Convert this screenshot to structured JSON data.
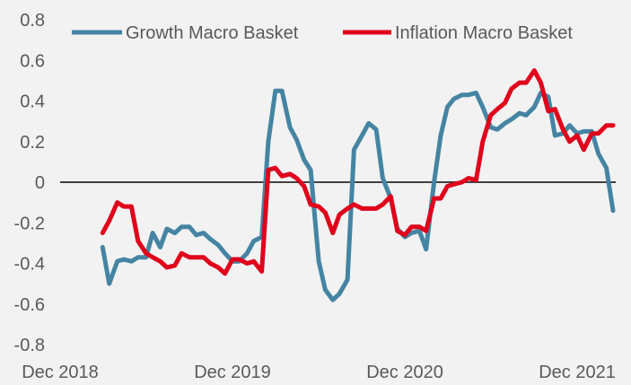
{
  "chart_data": {
    "type": "line",
    "title": "",
    "xlabel": "",
    "ylabel": "",
    "ylim": [
      -0.8,
      0.8
    ],
    "yticks": [
      "0.8",
      "0.6",
      "0.4",
      "0.2",
      "0",
      "-0.2",
      "-0.4",
      "-0.6",
      "-0.8"
    ],
    "xlim": [
      "2018-12-01",
      "2022-02-15"
    ],
    "xticks": [
      {
        "label": "Dec 2018",
        "date": "2018-12-01"
      },
      {
        "label": "Dec 2019",
        "date": "2019-12-01"
      },
      {
        "label": "Dec 2020",
        "date": "2020-12-01"
      },
      {
        "label": "Dec 2021",
        "date": "2021-12-01"
      }
    ],
    "grid": false,
    "zero_line": true,
    "legend_position": "top",
    "x": [
      "2019-03-01",
      "2019-03-15",
      "2019-04-01",
      "2019-04-15",
      "2019-05-01",
      "2019-05-15",
      "2019-06-01",
      "2019-06-15",
      "2019-07-01",
      "2019-07-15",
      "2019-08-01",
      "2019-08-15",
      "2019-09-01",
      "2019-09-15",
      "2019-10-01",
      "2019-10-15",
      "2019-11-01",
      "2019-11-15",
      "2019-12-01",
      "2019-12-15",
      "2020-01-01",
      "2020-01-15",
      "2020-02-01",
      "2020-02-15",
      "2020-03-01",
      "2020-03-15",
      "2020-04-01",
      "2020-04-15",
      "2020-05-01",
      "2020-05-15",
      "2020-06-01",
      "2020-06-15",
      "2020-07-01",
      "2020-07-15",
      "2020-08-01",
      "2020-08-15",
      "2020-09-01",
      "2020-09-15",
      "2020-10-01",
      "2020-10-15",
      "2020-11-01",
      "2020-11-15",
      "2020-12-01",
      "2020-12-15",
      "2021-01-01",
      "2021-01-15",
      "2021-02-01",
      "2021-02-15",
      "2021-03-01",
      "2021-03-15",
      "2021-04-01",
      "2021-04-15",
      "2021-05-01",
      "2021-05-15",
      "2021-06-01",
      "2021-06-15",
      "2021-07-01",
      "2021-07-15",
      "2021-08-01",
      "2021-08-15",
      "2021-09-01",
      "2021-09-15",
      "2021-10-01",
      "2021-10-15",
      "2021-11-01",
      "2021-11-15",
      "2021-12-01",
      "2021-12-15",
      "2022-01-01",
      "2022-01-15",
      "2022-02-01",
      "2022-02-15"
    ],
    "series": [
      {
        "name": "Growth Macro Basket",
        "color": "#4584a3",
        "values": [
          -0.32,
          -0.5,
          -0.39,
          -0.38,
          -0.39,
          -0.37,
          -0.37,
          -0.25,
          -0.32,
          -0.23,
          -0.25,
          -0.22,
          -0.22,
          -0.26,
          -0.25,
          -0.28,
          -0.31,
          -0.35,
          -0.39,
          -0.39,
          -0.35,
          -0.29,
          -0.27,
          0.2,
          0.45,
          0.45,
          0.27,
          0.21,
          0.11,
          0.06,
          -0.39,
          -0.53,
          -0.58,
          -0.55,
          -0.48,
          0.16,
          0.23,
          0.29,
          0.26,
          0.02,
          -0.08,
          -0.23,
          -0.27,
          -0.25,
          -0.24,
          -0.33,
          0.0,
          0.23,
          0.37,
          0.41,
          0.43,
          0.43,
          0.44,
          0.37,
          0.27,
          0.26,
          0.29,
          0.31,
          0.34,
          0.33,
          0.37,
          0.44,
          0.42,
          0.23,
          0.24,
          0.28,
          0.24,
          0.25,
          0.25,
          0.14,
          0.07,
          -0.14
        ]
      },
      {
        "name": "Inflation Macro Basket",
        "color": "#e0001b",
        "values": [
          -0.25,
          -0.19,
          -0.1,
          -0.12,
          -0.12,
          -0.29,
          -0.35,
          -0.37,
          -0.39,
          -0.42,
          -0.41,
          -0.35,
          -0.37,
          -0.37,
          -0.37,
          -0.4,
          -0.42,
          -0.45,
          -0.38,
          -0.38,
          -0.4,
          -0.39,
          -0.44,
          0.06,
          0.07,
          0.03,
          0.04,
          0.02,
          -0.02,
          -0.11,
          -0.12,
          -0.15,
          -0.25,
          -0.16,
          -0.13,
          -0.11,
          -0.13,
          -0.13,
          -0.13,
          -0.11,
          -0.07,
          -0.24,
          -0.26,
          -0.22,
          -0.22,
          -0.24,
          -0.08,
          -0.08,
          -0.02,
          -0.01,
          0.0,
          0.02,
          0.01,
          0.2,
          0.33,
          0.36,
          0.39,
          0.46,
          0.49,
          0.49,
          0.55,
          0.49,
          0.35,
          0.36,
          0.26,
          0.2,
          0.23,
          0.16,
          0.24,
          0.24,
          0.28,
          0.28
        ]
      }
    ]
  }
}
